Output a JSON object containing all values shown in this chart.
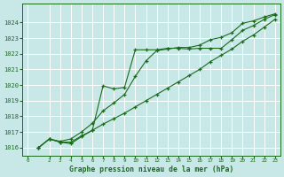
{
  "background_color": "#c8e8e8",
  "grid_color": "#aad4d4",
  "line_color": "#1a6b1a",
  "title": "Graphe pression niveau de la mer (hPa)",
  "ylim": [
    1015.5,
    1025.2
  ],
  "xlim": [
    -0.5,
    23.5
  ],
  "yticks": [
    1016,
    1017,
    1018,
    1019,
    1020,
    1021,
    1022,
    1023,
    1024
  ],
  "xticks": [
    0,
    2,
    3,
    4,
    5,
    6,
    7,
    8,
    9,
    10,
    11,
    12,
    13,
    14,
    15,
    16,
    17,
    18,
    19,
    20,
    21,
    22,
    23
  ],
  "line1_x": [
    1,
    2,
    3,
    4,
    5,
    6,
    7,
    8,
    9,
    10,
    11,
    12,
    13,
    14,
    15,
    16,
    17,
    18,
    19,
    20,
    21,
    22,
    23
  ],
  "line1_y": [
    1016.0,
    1016.55,
    1016.35,
    1016.35,
    1016.75,
    1017.1,
    1017.5,
    1017.85,
    1018.2,
    1018.6,
    1019.0,
    1019.4,
    1019.8,
    1020.2,
    1020.6,
    1021.0,
    1021.5,
    1021.9,
    1022.3,
    1022.8,
    1023.2,
    1023.7,
    1024.2
  ],
  "line2_x": [
    1,
    2,
    3,
    4,
    5,
    6,
    7,
    8,
    9,
    10,
    11,
    12,
    13,
    14,
    15,
    16,
    17,
    18,
    19,
    20,
    21,
    22,
    23
  ],
  "line2_y": [
    1016.0,
    1016.55,
    1016.35,
    1016.25,
    1016.7,
    1017.1,
    1019.95,
    1019.75,
    1019.85,
    1022.25,
    1022.25,
    1022.25,
    1022.35,
    1022.35,
    1022.3,
    1022.35,
    1022.35,
    1022.35,
    1022.9,
    1023.5,
    1023.8,
    1024.2,
    1024.5
  ],
  "line3_x": [
    1,
    2,
    3,
    4,
    5,
    6,
    7,
    8,
    9,
    10,
    11,
    12,
    13,
    14,
    15,
    16,
    17,
    18,
    19,
    20,
    21,
    22,
    23
  ],
  "line3_y": [
    1016.0,
    1016.55,
    1016.4,
    1016.55,
    1017.0,
    1017.55,
    1018.35,
    1018.85,
    1019.4,
    1020.55,
    1021.55,
    1022.2,
    1022.3,
    1022.4,
    1022.4,
    1022.55,
    1022.9,
    1023.05,
    1023.35,
    1023.95,
    1024.1,
    1024.35,
    1024.55
  ]
}
